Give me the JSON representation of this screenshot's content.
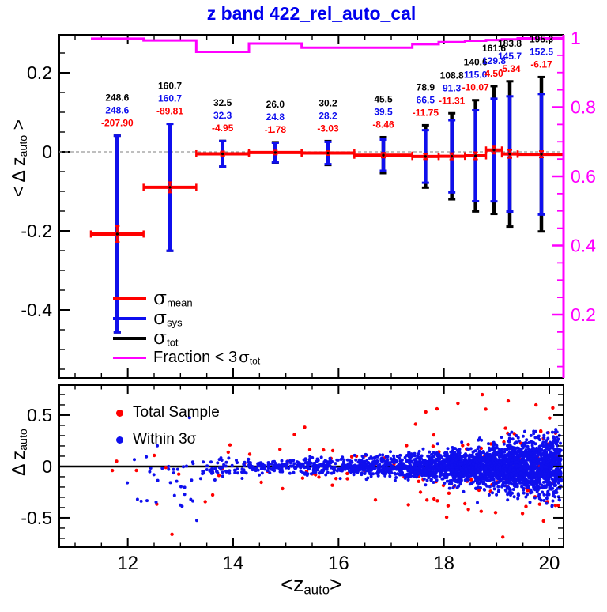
{
  "title": {
    "text": "z band 422_rel_auto_cal",
    "color": "#0000ee"
  },
  "colors": {
    "red": "#ff0000",
    "blue": "#0f0fee",
    "magenta": "#ff00ff",
    "black": "#000000",
    "dashed_zero": "#999999",
    "frame": "#000000"
  },
  "axis_titles": {
    "top_y_prefix": "< ",
    "top_y_main": "Δ z",
    "top_y_sub": "auto",
    "top_y_suffix": " >",
    "bottom_y_main": "Δ z",
    "bottom_y_sub": "auto",
    "x_prefix": "<z",
    "x_sub": "auto",
    "x_suffix": ">"
  },
  "legend_top": {
    "items": [
      {
        "color": "#ff0000",
        "prefix": "",
        "sigma": "σ",
        "sub": "mean"
      },
      {
        "color": "#0f0fee",
        "prefix": "",
        "sigma": "σ",
        "sub": "sys"
      },
      {
        "color": "#000000",
        "prefix": "",
        "sigma": "σ",
        "sub": "tot"
      },
      {
        "color": "#ff00ff",
        "prefix": "Fraction < 3",
        "sigma": "σ",
        "sub": "tot"
      }
    ]
  },
  "legend_bottom": {
    "items": [
      {
        "color": "#ff0000",
        "label": "Total Sample"
      },
      {
        "color": "#0f0fee",
        "label": "Within 3σ"
      }
    ]
  },
  "chart_data": [
    {
      "type": "errorbar",
      "panel": "top",
      "title": "z band 422_rel_auto_cal",
      "ylabel": "< Δ z_auto >",
      "right_ylabel": "Fraction < 3 sigma_tot",
      "ylim": [
        -0.572,
        0.296
      ],
      "right_ylim": [
        0.0,
        1.0
      ],
      "xlim": [
        10.7,
        20.27
      ],
      "grid": false,
      "zero_line": {
        "style": "dashed",
        "value": 0
      },
      "left_ticks": [
        {
          "v": 0.2,
          "label": "0.2"
        },
        {
          "v": 0.0,
          "label": "0"
        },
        {
          "v": -0.2,
          "label": "-0.2"
        },
        {
          "v": -0.4,
          "label": "-0.4"
        }
      ],
      "left_minor_step": 0.05,
      "right_ticks": [
        {
          "f": 1.0,
          "label": "1"
        },
        {
          "f": 0.8,
          "label": "0.8"
        },
        {
          "f": 0.6,
          "label": "0.6"
        },
        {
          "f": 0.4,
          "label": "0.4"
        },
        {
          "f": 0.2,
          "label": "0.2"
        }
      ],
      "right_minor_step": 0.05,
      "annotation_scale": 0.001,
      "bins": [
        {
          "z": 11.8,
          "z_lo": 11.3,
          "z_hi": 12.3,
          "tot": "248.6",
          "sys": "248.6",
          "mean": "-207.90",
          "fraction": 0.998,
          "mean_err": 0.02
        },
        {
          "z": 12.8,
          "z_lo": 12.3,
          "z_hi": 13.3,
          "tot": "160.7",
          "sys": "160.7",
          "mean": "-89.81",
          "fraction": 0.993,
          "mean_err": 0.013
        },
        {
          "z": 13.8,
          "z_lo": 13.3,
          "z_hi": 14.3,
          "tot": "32.5",
          "sys": "32.3",
          "mean": "-4.95",
          "fraction": 0.96,
          "mean_err": 0.006
        },
        {
          "z": 14.8,
          "z_lo": 14.3,
          "z_hi": 15.3,
          "tot": "26.0",
          "sys": "24.8",
          "mean": "-1.78",
          "fraction": 0.984,
          "mean_err": 0.005
        },
        {
          "z": 15.8,
          "z_lo": 15.3,
          "z_hi": 16.3,
          "tot": "30.2",
          "sys": "28.2",
          "mean": "-3.03",
          "fraction": 0.972,
          "mean_err": 0.005
        },
        {
          "z": 16.85,
          "z_lo": 16.3,
          "z_hi": 17.4,
          "tot": "45.5",
          "sys": "39.5",
          "mean": "-8.46",
          "fraction": 0.972,
          "mean_err": 0.006
        },
        {
          "z": 17.65,
          "z_lo": 17.4,
          "z_hi": 17.9,
          "tot": "78.9",
          "sys": "66.5",
          "mean": "-11.75",
          "fraction": 0.982,
          "mean_err": 0.007
        },
        {
          "z": 18.15,
          "z_lo": 17.9,
          "z_hi": 18.4,
          "tot": "108.8",
          "sys": "91.3",
          "mean": "-11.31",
          "fraction": 0.988,
          "mean_err": 0.008
        },
        {
          "z": 18.6,
          "z_lo": 18.4,
          "z_hi": 18.8,
          "tot": "140.6",
          "sys": "115.0",
          "mean": "-10.07",
          "fraction": 0.992,
          "mean_err": 0.009
        },
        {
          "z": 18.95,
          "z_lo": 18.8,
          "z_hi": 19.1,
          "tot": "161.6",
          "sys": "129.8",
          "mean": "4.50",
          "fraction": 0.994,
          "mean_err": 0.009
        },
        {
          "z": 19.25,
          "z_lo": 19.1,
          "z_hi": 19.4,
          "tot": "183.8",
          "sys": "145.7",
          "mean": "-5.34",
          "fraction": 0.996,
          "mean_err": 0.01
        },
        {
          "z": 19.85,
          "z_lo": 19.4,
          "z_hi": 20.27,
          "tot": "195.3",
          "sys": "152.5",
          "mean": "-6.17",
          "fraction": 0.999,
          "mean_err": 0.008
        }
      ]
    },
    {
      "type": "scatter",
      "panel": "bottom",
      "ylabel": "Δ z_auto",
      "xlabel": "<z_auto>",
      "ylim": [
        -0.785,
        0.792
      ],
      "xlim": [
        10.7,
        20.27
      ],
      "left_ticks": [
        {
          "v": 0.5,
          "label": "0.5"
        },
        {
          "v": 0.0,
          "label": "0"
        },
        {
          "v": -0.5,
          "label": "-0.5"
        }
      ],
      "left_minor_step": 0.1,
      "x_ticks": [
        {
          "z": 12,
          "label": "12"
        },
        {
          "z": 14,
          "label": "14"
        },
        {
          "z": 16,
          "label": "16"
        },
        {
          "z": 18,
          "label": "18"
        },
        {
          "z": 20,
          "label": "20"
        }
      ],
      "x_minor_step": 0.5,
      "zero_line": {
        "style": "solid",
        "value": 0
      },
      "series": [
        {
          "name": "Total Sample",
          "color": "#ff0000",
          "marker_r": 2.2,
          "bands": [
            {
              "z0": 11.7,
              "z1": 13.4,
              "n": 8,
              "mu": -0.2,
              "sigma": 0.25
            },
            {
              "z0": 13.4,
              "z1": 15.3,
              "n": 14,
              "mu": 0.0,
              "sigma": 0.15
            },
            {
              "z0": 15.3,
              "z1": 17.3,
              "n": 26,
              "mu": 0.0,
              "sigma": 0.22
            },
            {
              "z0": 17.3,
              "z1": 18.6,
              "n": 36,
              "mu": 0.0,
              "sigma": 0.28
            },
            {
              "z0": 18.6,
              "z1": 19.7,
              "n": 44,
              "mu": 0.0,
              "sigma": 0.3
            },
            {
              "z0": 19.7,
              "z1": 20.25,
              "n": 30,
              "mu": 0.0,
              "sigma": 0.3
            }
          ]
        },
        {
          "name": "Within 3σ",
          "color": "#0f0fee",
          "marker_r": 2.0,
          "bands": [
            {
              "z0": 11.9,
              "z1": 12.4,
              "n": 6,
              "mu": -0.12,
              "sigma": 0.18
            },
            {
              "z0": 12.4,
              "z1": 13.4,
              "n": 30,
              "mu": -0.15,
              "sigma": 0.16
            },
            {
              "z0": 13.4,
              "z1": 14.3,
              "n": 60,
              "mu": -0.01,
              "sigma": 0.05
            },
            {
              "z0": 14.3,
              "z1": 15.3,
              "n": 110,
              "mu": 0.0,
              "sigma": 0.035
            },
            {
              "z0": 15.3,
              "z1": 16.3,
              "n": 160,
              "mu": 0.0,
              "sigma": 0.04
            },
            {
              "z0": 16.3,
              "z1": 17.3,
              "n": 280,
              "mu": 0.0,
              "sigma": 0.05
            },
            {
              "z0": 17.3,
              "z1": 18.0,
              "n": 330,
              "mu": 0.0,
              "sigma": 0.065
            },
            {
              "z0": 18.0,
              "z1": 18.6,
              "n": 430,
              "mu": 0.0,
              "sigma": 0.08
            },
            {
              "z0": 18.6,
              "z1": 19.2,
              "n": 560,
              "mu": 0.0,
              "sigma": 0.1
            },
            {
              "z0": 19.2,
              "z1": 19.7,
              "n": 650,
              "mu": 0.0,
              "sigma": 0.12
            },
            {
              "z0": 19.7,
              "z1": 20.25,
              "n": 550,
              "mu": 0.0,
              "sigma": 0.14
            }
          ]
        }
      ],
      "seed": 42
    }
  ]
}
